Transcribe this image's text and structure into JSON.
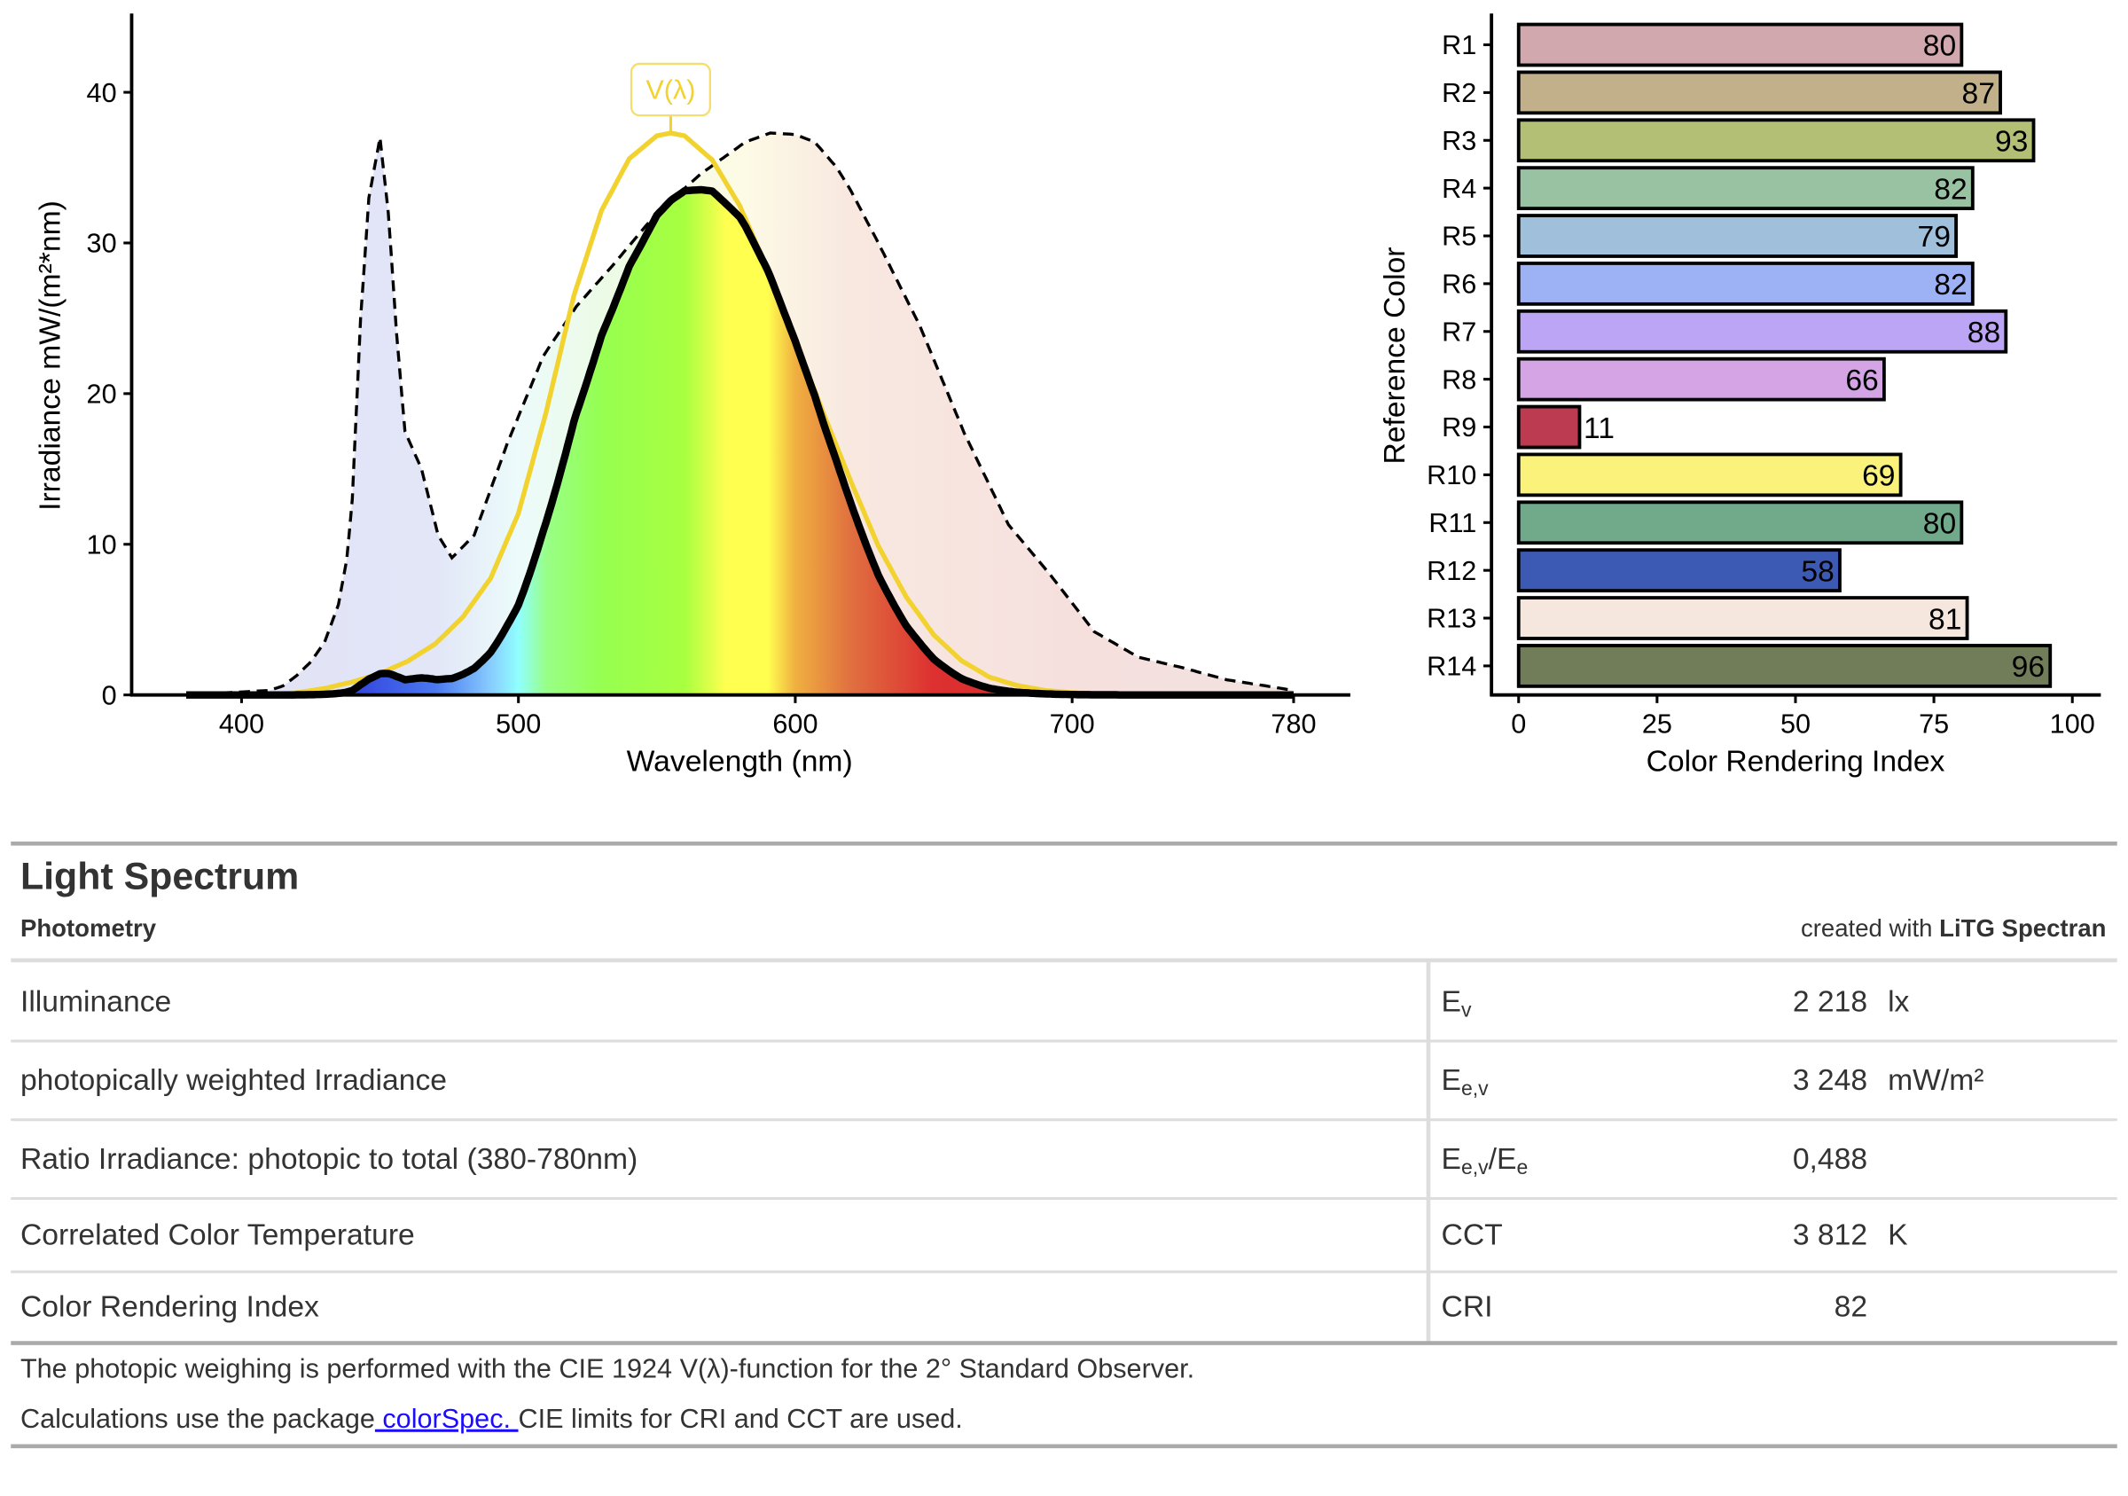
{
  "chart_data": [
    {
      "type": "area",
      "xlabel": "Wavelength (nm)",
      "ylabel": "Irradiance  mW/(m²*nm)",
      "xlim": [
        380,
        780
      ],
      "ylim": [
        0,
        45
      ],
      "xticks": [
        400,
        500,
        600,
        700,
        780
      ],
      "yticks": [
        0,
        10,
        20,
        30,
        40
      ],
      "annotation": "V(λ)",
      "colors": {
        "v_lambda": "#f2d22e",
        "spectrum": "#000000"
      },
      "spectrum": {
        "x": [
          380,
          390,
          400,
          410,
          415,
          420,
          425,
          430,
          435,
          438,
          440,
          443,
          446,
          450,
          453,
          456,
          459,
          465,
          471,
          476,
          484,
          496,
          509,
          521,
          534,
          550,
          566,
          582,
          591,
          600,
          607,
          615,
          620,
          630,
          645,
          661,
          677,
          692,
          708,
          724,
          740,
          756,
          770,
          780
        ],
        "y": [
          0.1,
          0.1,
          0.2,
          0.3,
          0.6,
          1.3,
          2.2,
          3.5,
          6,
          9,
          13,
          25,
          33,
          37,
          32,
          24,
          17.5,
          15,
          10.6,
          9.1,
          10.6,
          16.7,
          22.5,
          25.8,
          28.5,
          32,
          34.6,
          36.7,
          37.3,
          37.2,
          36.7,
          35,
          33.5,
          30,
          24.5,
          17.4,
          11.3,
          8,
          4.2,
          2.5,
          1.8,
          1,
          0.6,
          0.3
        ]
      },
      "v_lambda": {
        "x": [
          380,
          390,
          400,
          410,
          420,
          430,
          440,
          450,
          460,
          470,
          480,
          490,
          500,
          510,
          520,
          530,
          540,
          550,
          555,
          560,
          570,
          580,
          590,
          600,
          610,
          620,
          630,
          640,
          650,
          660,
          670,
          680,
          690,
          700,
          710,
          720,
          730,
          740,
          750,
          760,
          770,
          780
        ],
        "y": [
          4e-05,
          0.00012,
          0.0004,
          0.0012,
          0.004,
          0.0116,
          0.023,
          0.038,
          0.06,
          0.091,
          0.139,
          0.208,
          0.323,
          0.503,
          0.71,
          0.862,
          0.954,
          0.995,
          1.0,
          0.995,
          0.952,
          0.87,
          0.757,
          0.631,
          0.503,
          0.381,
          0.265,
          0.175,
          0.107,
          0.061,
          0.032,
          0.017,
          0.0082,
          0.0041,
          0.0021,
          0.00105,
          0.00052,
          0.00025,
          0.00012,
          6e-05,
          3e-05,
          1.5e-05
        ]
      }
    },
    {
      "type": "bar",
      "orientation": "horizontal",
      "xlabel": "Color Rendering Index",
      "ylabel": "Reference Color",
      "xlim": [
        0,
        100
      ],
      "xticks": [
        0,
        25,
        50,
        75,
        100
      ],
      "categories": [
        "R1",
        "R2",
        "R3",
        "R4",
        "R5",
        "R6",
        "R7",
        "R8",
        "R9",
        "R10",
        "R11",
        "R12",
        "R13",
        "R14"
      ],
      "values": [
        80,
        87,
        93,
        82,
        79,
        82,
        88,
        66,
        11,
        69,
        80,
        58,
        81,
        96
      ],
      "colors": [
        "#d1a8ae",
        "#c1b08a",
        "#b2bf75",
        "#98c2a2",
        "#9fbfda",
        "#9db1f5",
        "#bca5f5",
        "#d4a4e5",
        "#bc3b50",
        "#faf27a",
        "#71a98b",
        "#3c5ab4",
        "#f5e7dd",
        "#717c58"
      ]
    }
  ],
  "table": {
    "title": "Light Spectrum",
    "subtitle": "Photometry",
    "credit_prefix": "created with ",
    "credit_brand": "LiTG Spectran",
    "rows": [
      {
        "label": "Illuminance",
        "sym": "E",
        "sub": "v",
        "sym2": "",
        "sub2": "",
        "value": "2 218",
        "unit": "lx"
      },
      {
        "label": "photopically weighted Irradiance",
        "sym": "E",
        "sub": "e,v",
        "sym2": "",
        "sub2": "",
        "value": "3 248",
        "unit": "mW/m²"
      },
      {
        "label": "Ratio Irradiance: photopic to total (380-780nm)",
        "sym": "E",
        "sub": "e,v",
        "sym2": "/E",
        "sub2": "e",
        "value": "0,488",
        "unit": ""
      },
      {
        "label": "Correlated Color Temperature",
        "sym": "CCT",
        "sub": "",
        "sym2": "",
        "sub2": "",
        "value": "3 812",
        "unit": "K"
      },
      {
        "label": "Color Rendering Index",
        "sym": "CRI",
        "sub": "",
        "sym2": "",
        "sub2": "",
        "value": "82",
        "unit": ""
      }
    ],
    "note1": "The photopic weighing is performed with the CIE 1924 V(λ)-function for the 2° Standard Observer.",
    "note2_prefix": "Calculations use the package",
    "note2_link": " colorSpec. ",
    "note2_suffix": "CIE limits for CRI and CCT are used."
  }
}
